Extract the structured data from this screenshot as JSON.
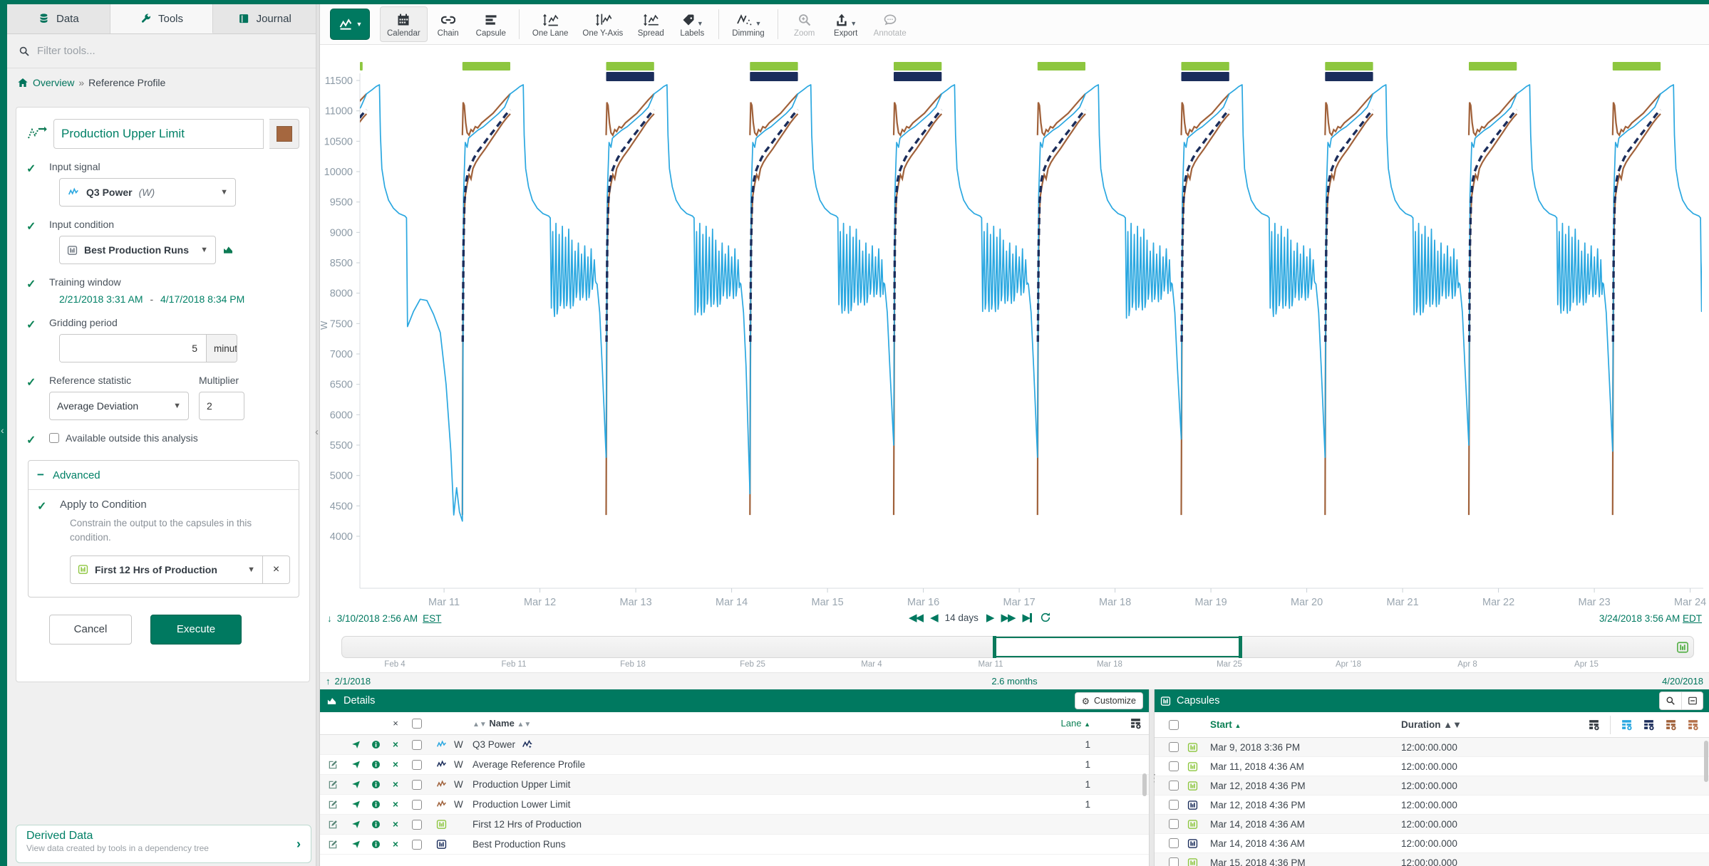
{
  "colors": {
    "accent": "#007960",
    "capsule_green": "#8DC63F",
    "navy": "#1B2D5B",
    "signal_blue": "#2AA7E0",
    "limit_brown": "#A0613A",
    "axis_text": "#8C9AA6"
  },
  "sidebar": {
    "tabs": [
      {
        "label": "Data"
      },
      {
        "label": "Tools"
      },
      {
        "label": "Journal"
      }
    ],
    "filter_placeholder": "Filter tools...",
    "breadcrumb": {
      "home": "Overview",
      "separator": "»",
      "current": "Reference Profile"
    },
    "tool": {
      "title": "Production Upper Limit",
      "swatch_color": "#A5673F",
      "input_signal_label": "Input signal",
      "input_signal_value": "Q3 Power",
      "input_signal_unit": "(W)",
      "input_condition_label": "Input condition",
      "input_condition_value": "Best Production Runs",
      "training_window_label": "Training window",
      "training_start": "2/21/2018 3:31 AM",
      "training_separator": "-",
      "training_end": "4/17/2018 8:34 PM",
      "gridding_label": "Gridding period",
      "gridding_value": "5",
      "gridding_unit": "minute(s)",
      "reference_statistic_label": "Reference statistic",
      "reference_statistic_value": "Average Deviation",
      "multiplier_label": "Multiplier",
      "multiplier_value": "2",
      "available_label": "Available outside this analysis",
      "advanced_label": "Advanced",
      "apply_label": "Apply to Condition",
      "apply_description": "Constrain the output to the capsules in this condition.",
      "apply_value": "First 12 Hrs of Production",
      "cancel_label": "Cancel",
      "execute_label": "Execute"
    },
    "derived": {
      "title": "Derived Data",
      "subtitle": "View data created by tools in a dependency tree"
    }
  },
  "toolbar": {
    "buttons": [
      {
        "label": "Calendar"
      },
      {
        "label": "Chain"
      },
      {
        "label": "Capsule"
      },
      {
        "label": "One Lane"
      },
      {
        "label": "One Y-Axis"
      },
      {
        "label": "Spread"
      },
      {
        "label": "Labels"
      },
      {
        "label": "Dimming"
      },
      {
        "label": "Zoom"
      },
      {
        "label": "Export"
      },
      {
        "label": "Annotate"
      }
    ]
  },
  "nav": {
    "start_date": "3/10/2018 2:56 AM",
    "start_tz": "EST",
    "range_label": "14 days",
    "end_date": "3/24/2018 3:56 AM",
    "end_tz": "EDT"
  },
  "scrubber": {
    "ticks": [
      "Feb 4",
      "Feb 11",
      "Feb 18",
      "Feb 25",
      "Mar 4",
      "Mar 11",
      "Mar 18",
      "Mar 25",
      "Apr '18",
      "Apr 8",
      "Apr 15"
    ],
    "range_start": "2/1/2018",
    "range_duration": "2.6 months",
    "range_end": "4/20/2018"
  },
  "details": {
    "title": "Details",
    "customize_label": "Customize",
    "header": {
      "x": "×",
      "name": "Name",
      "lane": "Lane"
    },
    "rows": [
      {
        "name": "Q3 Power",
        "unit": "W",
        "lane": "1",
        "color": "#2AA7E0",
        "type": "signal"
      },
      {
        "name": "Average Reference Profile",
        "unit": "W",
        "lane": "1",
        "color": "#1B2D5B",
        "type": "signal"
      },
      {
        "name": "Production Upper Limit",
        "unit": "W",
        "lane": "1",
        "color": "#A0613A",
        "type": "signal"
      },
      {
        "name": "Production Lower Limit",
        "unit": "W",
        "lane": "1",
        "color": "#A0613A",
        "type": "signal"
      },
      {
        "name": "First 12 Hrs of Production",
        "unit": "",
        "lane": "",
        "color": "#8DC63F",
        "type": "condition"
      },
      {
        "name": "Best Production Runs",
        "unit": "",
        "lane": "",
        "color": "#1B2D5B",
        "type": "condition"
      }
    ]
  },
  "capsules": {
    "title": "Capsules",
    "header": {
      "start": "Start",
      "duration": "Duration"
    },
    "add_icon_colors": [
      "#33393f",
      "#2AA7E0",
      "#1B2D5B",
      "#A0613A",
      "#B5714A"
    ],
    "rows": [
      {
        "start": "Mar 9, 2018 3:36 PM",
        "duration": "12:00:00.000",
        "color": "#8DC63F"
      },
      {
        "start": "Mar 11, 2018 4:36 AM",
        "duration": "12:00:00.000",
        "color": "#8DC63F"
      },
      {
        "start": "Mar 12, 2018 4:36 PM",
        "duration": "12:00:00.000",
        "color": "#8DC63F"
      },
      {
        "start": "Mar 12, 2018 4:36 PM",
        "duration": "12:00:00.000",
        "color": "#1B2D5B"
      },
      {
        "start": "Mar 14, 2018 4:36 AM",
        "duration": "12:00:00.000",
        "color": "#8DC63F"
      },
      {
        "start": "Mar 14, 2018 4:36 AM",
        "duration": "12:00:00.000",
        "color": "#1B2D5B"
      },
      {
        "start": "Mar 15, 2018 4:36 PM",
        "duration": "12:00:00.000",
        "color": "#8DC63F"
      }
    ]
  },
  "chart_data": {
    "type": "line",
    "y_unit": "W",
    "ylim": [
      3600,
      11650
    ],
    "yticks": [
      11500,
      11000,
      10500,
      10000,
      9500,
      9000,
      8500,
      8000,
      7500,
      7000,
      6500,
      6000,
      5500,
      5000,
      4500,
      4000
    ],
    "x_start": "3/10/2018 2:56 AM EST",
    "x_end": "3/24/2018 3:56 AM EDT",
    "x_span_days": 14,
    "x_tick_labels": [
      "Mar 11",
      "Mar 12",
      "Mar 13",
      "Mar 14",
      "Mar 15",
      "Mar 16",
      "Mar 17",
      "Mar 18",
      "Mar 19",
      "Mar 20",
      "Mar 21",
      "Mar 22",
      "Mar 23",
      "Mar 24"
    ],
    "x_first_midnight_offset_days": 0.878,
    "cycle_period_days": 1.5,
    "cycle_starts_days": [
      -0.431,
      1.069,
      2.569,
      4.069,
      5.569,
      7.069,
      8.569,
      10.069,
      11.569,
      13.069
    ],
    "v_bottoms": [
      5300,
      4250,
      5300,
      4700,
      5500,
      5300,
      5600,
      5300,
      5500,
      5400
    ],
    "series": [
      {
        "name": "Q3 Power",
        "color": "#2AA7E0",
        "width": 1.7,
        "style": "solid",
        "climb": [
          [
            0,
            null
          ],
          [
            0.012,
            9600
          ],
          [
            0.03,
            10480
          ],
          [
            0.05,
            10400
          ],
          [
            0.065,
            10550
          ],
          [
            0.1,
            10600
          ],
          [
            0.16,
            10680
          ],
          [
            0.22,
            10740
          ],
          [
            0.3,
            10850
          ],
          [
            0.38,
            10960
          ],
          [
            0.44,
            11060
          ],
          [
            0.5,
            11280
          ],
          [
            0.56,
            11350
          ],
          [
            0.6,
            11400
          ],
          [
            0.635,
            11430
          ],
          [
            0.645,
            10600
          ],
          [
            0.66,
            10050
          ],
          [
            0.69,
            9750
          ],
          [
            0.73,
            9530
          ],
          [
            0.78,
            9400
          ],
          [
            0.84,
            9310
          ],
          [
            0.9,
            9270
          ],
          [
            0.917,
            9240
          ]
        ],
        "band": {
          "t0": 0.928,
          "t1": 1.395,
          "spikes": 14,
          "lo0": 7700,
          "lo1": 8050,
          "hi0": 9150,
          "hi1": 8550
        },
        "tail": [
          [
            1.405,
            8150
          ],
          [
            1.433,
            7680
          ],
          [
            1.459,
            6800
          ],
          [
            1.5,
            null
          ]
        ],
        "first_cycle_tail": [
          [
            0.928,
            7450
          ],
          [
            0.99,
            7700
          ],
          [
            1.06,
            7900
          ],
          [
            1.13,
            7880
          ],
          [
            1.2,
            7650
          ],
          [
            1.27,
            7350
          ],
          [
            1.33,
            6500
          ],
          [
            1.38,
            5400
          ],
          [
            1.41,
            4350
          ],
          [
            1.44,
            4800
          ],
          [
            1.47,
            4400
          ],
          [
            1.5,
            null
          ]
        ]
      },
      {
        "name": "Average Reference Profile",
        "color": "#1B2D5B",
        "width": 3.4,
        "style": "dashed",
        "points": [
          [
            0.004,
            7200
          ],
          [
            0.012,
            8800
          ],
          [
            0.022,
            9500
          ],
          [
            0.04,
            9850
          ],
          [
            0.06,
            10000
          ],
          [
            0.09,
            10120
          ],
          [
            0.12,
            10220
          ],
          [
            0.16,
            10330
          ],
          [
            0.21,
            10430
          ],
          [
            0.27,
            10560
          ],
          [
            0.33,
            10680
          ],
          [
            0.39,
            10800
          ],
          [
            0.45,
            10930
          ],
          [
            0.5,
            11020
          ]
        ]
      },
      {
        "name": "Production Upper Limit",
        "color": "#A0613A",
        "width": 2.2,
        "style": "solid",
        "points": [
          [
            0,
            10600
          ],
          [
            0.008,
            11140
          ],
          [
            0.02,
            11090
          ],
          [
            0.035,
            10800
          ],
          [
            0.05,
            10640
          ],
          [
            0.07,
            10600
          ],
          [
            0.09,
            10690
          ],
          [
            0.11,
            10660
          ],
          [
            0.135,
            10740
          ],
          [
            0.16,
            10720
          ],
          [
            0.2,
            10800
          ],
          [
            0.26,
            10880
          ],
          [
            0.32,
            10960
          ],
          [
            0.38,
            11070
          ],
          [
            0.44,
            11180
          ],
          [
            0.5,
            11280
          ]
        ]
      },
      {
        "name": "Production Lower Limit",
        "color": "#A0613A",
        "width": 2.2,
        "style": "solid",
        "points": [
          [
            0,
            4350
          ],
          [
            0.004,
            6500
          ],
          [
            0.009,
            8300
          ],
          [
            0.016,
            9200
          ],
          [
            0.03,
            9600
          ],
          [
            0.05,
            9800
          ],
          [
            0.07,
            9950
          ],
          [
            0.09,
            9880
          ],
          [
            0.11,
            10050
          ],
          [
            0.14,
            10150
          ],
          [
            0.18,
            10250
          ],
          [
            0.24,
            10380
          ],
          [
            0.3,
            10520
          ],
          [
            0.36,
            10660
          ],
          [
            0.42,
            10800
          ],
          [
            0.47,
            10900
          ],
          [
            0.5,
            10950
          ]
        ]
      }
    ],
    "capsule_lanes": [
      {
        "name": "First 12 Hrs of Production",
        "color": "#8DC63F",
        "duration_days": 0.5,
        "starts_days": [
          -0.472,
          1.069,
          2.569,
          4.069,
          5.569,
          7.069,
          8.569,
          10.069,
          11.569,
          13.069
        ]
      },
      {
        "name": "Best Production Runs",
        "color": "#1B2D5B",
        "duration_days": 0.5,
        "starts_days": [
          2.569,
          4.069,
          5.569,
          8.569,
          10.069
        ]
      }
    ]
  }
}
